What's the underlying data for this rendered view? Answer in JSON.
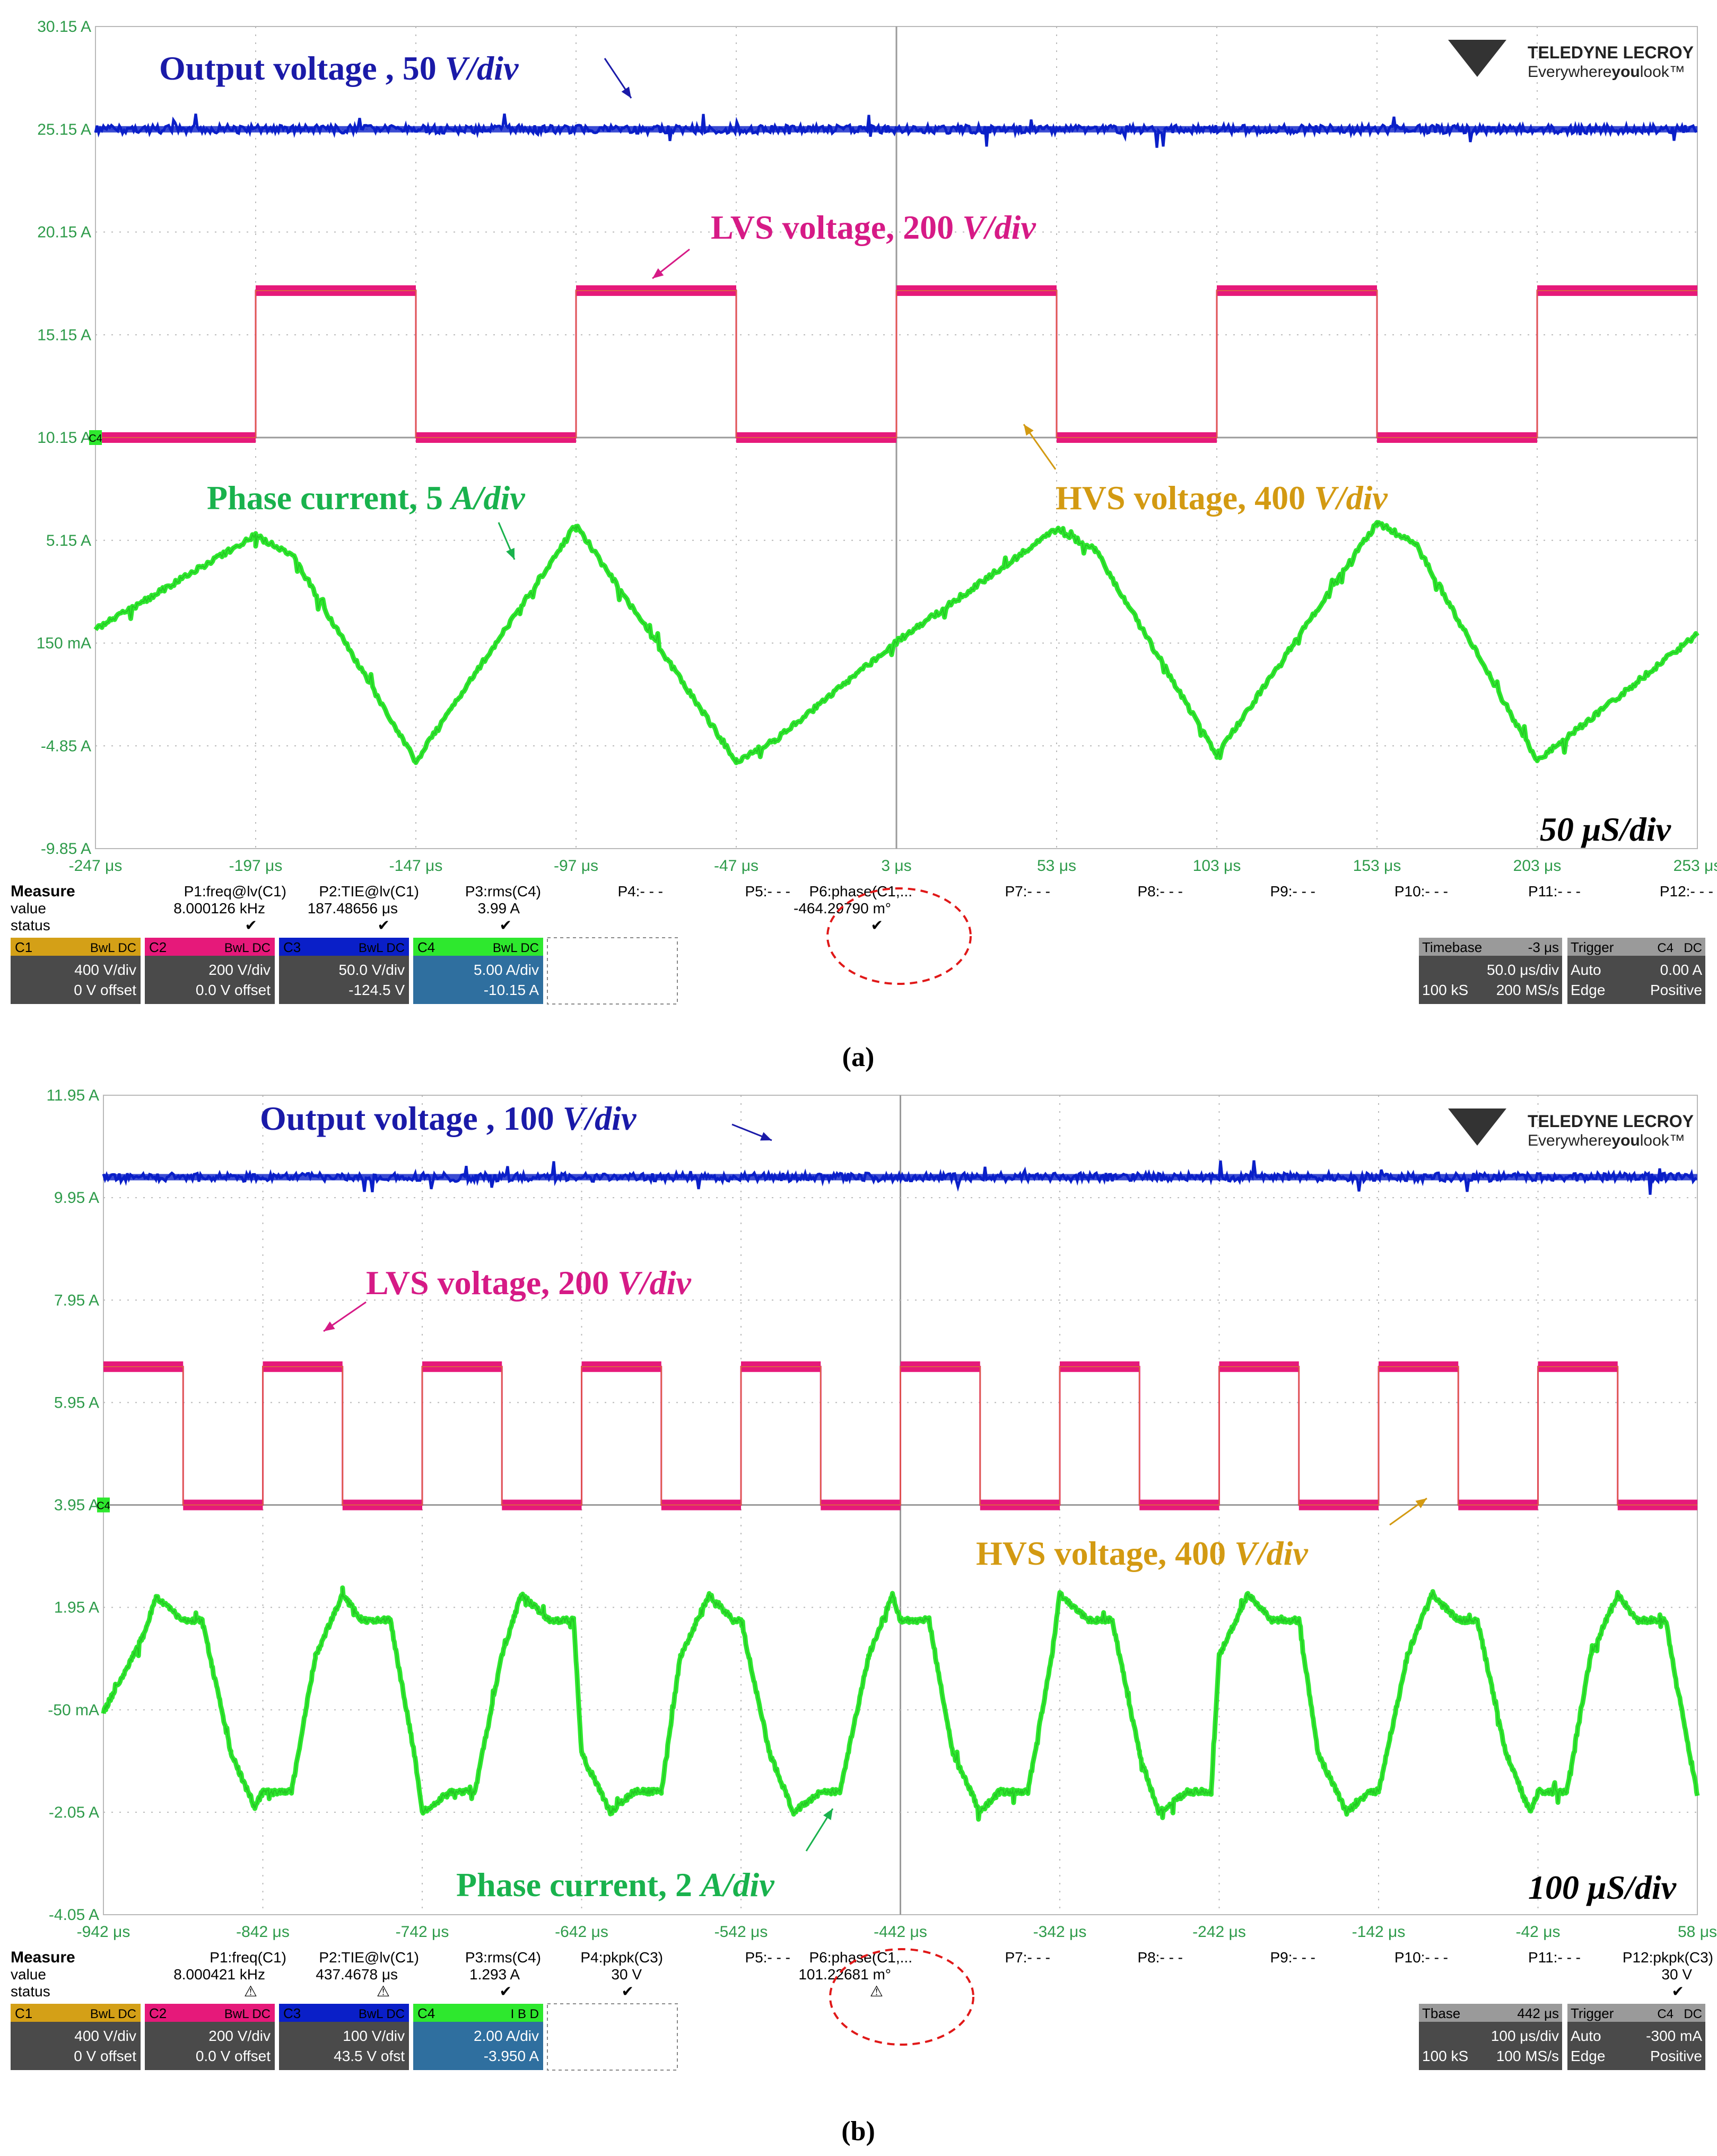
{
  "brand": {
    "name": "TELEDYNE LECROY",
    "tagline_pre": "Everywhere",
    "tagline_bold": "you",
    "tagline_post": "look™"
  },
  "colors": {
    "c1": "#d4a017",
    "c2": "#e6197a",
    "c3": "#0a1fc8",
    "c4": "#2ee82e",
    "grid": "#b9b9b9",
    "lbl_c1": "#d39a12",
    "lbl_c2": "#d61a86",
    "lbl_c3": "#1a1aa8",
    "lbl_c4": "#19b24d",
    "axis_txt": "#2e9b4a"
  },
  "chart_data": [
    {
      "type": "line",
      "caption": "(a)",
      "timebase_label": "50 μS/div",
      "y_ticks": [
        "30.15 A",
        "25.15 A",
        "20.15 A",
        "15.15 A",
        "10.15 A",
        "5.15 A",
        "150 mA",
        "-4.85 A",
        "-9.85 A"
      ],
      "x_ticks": [
        "-247 μs",
        "-197 μs",
        "-147 μs",
        "-97 μs",
        "-47 μs",
        "3 μs",
        "53 μs",
        "103 μs",
        "153 μs",
        "203 μs",
        "253 μs"
      ],
      "xlim_us": [
        -247,
        253
      ],
      "ylim": [
        -9.85,
        30.15
      ],
      "annotations": {
        "output": {
          "pre": "Output voltage , 50 ",
          "unit": "V/div"
        },
        "lvs": {
          "pre": "LVS voltage, 200 ",
          "unit": "V/div"
        },
        "hvs": {
          "pre": "HVS voltage, 400 ",
          "unit": "V/div"
        },
        "phase": {
          "pre": "Phase current, 5 ",
          "unit": "A/div"
        }
      },
      "series": [
        {
          "name": "Output voltage",
          "channel": "C3",
          "level": 25.15
        },
        {
          "name": "LVS voltage",
          "channel": "C2",
          "low": 10.15,
          "high": 17.3,
          "square_edges_us": [
            -197,
            -147,
            -97,
            -47,
            3,
            53,
            103,
            153,
            203,
            253
          ]
        },
        {
          "name": "HVS voltage",
          "channel": "C1"
        },
        {
          "name": "Phase current",
          "channel": "C4",
          "x_us": [
            -247,
            -197,
            -185,
            -147,
            -97,
            -47,
            -35,
            3,
            53,
            65,
            103,
            153,
            165,
            203,
            253
          ],
          "y": [
            0.8,
            5.4,
            4.3,
            -5.6,
            5.9,
            -5.6,
            -4.6,
            0.2,
            5.7,
            4.7,
            -5.3,
            6.0,
            5.0,
            -5.6,
            0.6
          ]
        }
      ],
      "measure": {
        "header": "Measure",
        "row_value": "value",
        "row_status": "status",
        "params": [
          "P1:freq@lv(C1)",
          "P2:TIE@lv(C1)",
          "P3:rms(C4)",
          "P4:- - -",
          "P5:- - -",
          "P6:phase(C1,...",
          "P7:- - -",
          "P8:- - -",
          "P9:- - -",
          "P10:- - -",
          "P11:- - -",
          "P12:- - -"
        ],
        "values": [
          "8.000126 kHz",
          "187.48656 μs",
          "3.99 A",
          "",
          "",
          "-464.29790 m°",
          "",
          "",
          "",
          "",
          "",
          ""
        ],
        "status": [
          "✔",
          "✔",
          "✔",
          "",
          "",
          "✔",
          "",
          "",
          "",
          "",
          "",
          ""
        ]
      },
      "channels": [
        {
          "id": "C1",
          "flags": "BwL DC",
          "scale": "400 V/div",
          "offset": "0 V offset"
        },
        {
          "id": "C2",
          "flags": "BwL DC",
          "scale": "200 V/div",
          "offset": "0.0 V offset"
        },
        {
          "id": "C3",
          "flags": "BwL DC",
          "scale": "50.0 V/div",
          "offset": "-124.5 V"
        },
        {
          "id": "C4",
          "flags": "BwL DC",
          "scale": "5.00 A/div",
          "offset": "-10.15 A"
        }
      ],
      "timebase": {
        "label": "Timebase",
        "delay": "-3 μs",
        "per_div": "50.0 μs/div",
        "samples": "100 kS",
        "rate": "200 MS/s"
      },
      "trigger": {
        "label": "Trigger",
        "ch": "C4",
        "coupling": "DC",
        "mode": "Auto",
        "level": "0.00 A",
        "type": "Edge",
        "slope": "Positive"
      }
    },
    {
      "type": "line",
      "caption": "(b)",
      "timebase_label": "100 μS/div",
      "y_ticks": [
        "11.95 A",
        "9.95 A",
        "7.95 A",
        "5.95 A",
        "3.95 A",
        "1.95 A",
        "-50 mA",
        "-2.05 A",
        "-4.05 A"
      ],
      "x_ticks": [
        "-942 μs",
        "-842 μs",
        "-742 μs",
        "-642 μs",
        "-542 μs",
        "-442 μs",
        "-342 μs",
        "-242 μs",
        "-142 μs",
        "-42 μs",
        "58 μs"
      ],
      "xlim_us": [
        -942,
        58
      ],
      "ylim": [
        -4.05,
        11.95
      ],
      "annotations": {
        "output": {
          "pre": "Output voltage , 100 ",
          "unit": "V/div"
        },
        "lvs": {
          "pre": "LVS voltage, 200 ",
          "unit": "V/div"
        },
        "hvs": {
          "pre": "HVS voltage, 400 ",
          "unit": "V/div"
        },
        "phase": {
          "pre": "Phase current, 2 ",
          "unit": "A/div"
        }
      },
      "series": [
        {
          "name": "Output voltage",
          "channel": "C3",
          "level": 10.35
        },
        {
          "name": "LVS voltage",
          "channel": "C2",
          "low": 3.95,
          "high": 6.65,
          "square_edges_us": [
            -892,
            -842,
            -792,
            -742,
            -692,
            -642,
            -592,
            -542,
            -492,
            -442,
            -392,
            -342,
            -292,
            -242,
            -192,
            -142,
            -92,
            -42,
            8,
            58
          ]
        },
        {
          "name": "HVS voltage",
          "channel": "C1"
        },
        {
          "name": "Phase current",
          "channel": "C4",
          "x_us": [
            -942,
            -917,
            -909,
            -892,
            -880,
            -862,
            -847,
            -842,
            -824,
            -809,
            -792,
            -780,
            -762,
            -747,
            -742,
            -724,
            -709,
            -692,
            -680,
            -662,
            -647,
            -642,
            -624,
            -609,
            -592,
            -580,
            -562,
            -547,
            -542,
            -524,
            -509,
            -492,
            -480,
            -462,
            -447,
            -442,
            -424,
            -409,
            -392,
            -380,
            -362,
            -347,
            -342,
            -324,
            -309,
            -292,
            -280,
            -262,
            -247,
            -242,
            -224,
            -209,
            -192,
            -180,
            -162,
            -147,
            -142,
            -124,
            -109,
            -92,
            -80,
            -62,
            -47,
            -42,
            -24,
            -9,
            8,
            20,
            38,
            53,
            58
          ],
          "y": [
            -0.1,
            1.4,
            2.15,
            1.7,
            1.7,
            -0.9,
            -1.95,
            -1.65,
            -1.65,
            1.0,
            2.2,
            1.7,
            1.7,
            -0.9,
            -2.05,
            -1.65,
            -1.65,
            1.0,
            2.2,
            1.7,
            1.7,
            -0.9,
            -2.05,
            -1.65,
            -1.65,
            1.0,
            2.2,
            1.7,
            1.7,
            -0.9,
            -2.05,
            -1.65,
            -1.65,
            1.0,
            2.2,
            1.7,
            1.7,
            -0.9,
            -2.05,
            -1.65,
            -1.65,
            1.0,
            2.2,
            1.7,
            1.7,
            -0.9,
            -2.05,
            -1.65,
            -1.65,
            1.0,
            2.2,
            1.7,
            1.7,
            -0.9,
            -2.05,
            -1.65,
            -1.65,
            1.0,
            2.2,
            1.7,
            1.7,
            -0.9,
            -2.05,
            -1.65,
            -1.65,
            1.0,
            2.2,
            1.7,
            1.7,
            -0.9,
            -1.7
          ]
        }
      ],
      "measure": {
        "header": "Measure",
        "row_value": "value",
        "row_status": "status",
        "params": [
          "P1:freq(C1)",
          "P2:TIE@lv(C1)",
          "P3:rms(C4)",
          "P4:pkpk(C3)",
          "P5:- - -",
          "P6:phase(C1,...",
          "P7:- - -",
          "P8:- - -",
          "P9:- - -",
          "P10:- - -",
          "P11:- - -",
          "P12:pkpk(C3)"
        ],
        "values": [
          "8.000421 kHz",
          "437.4678 μs",
          "1.293 A",
          "30 V",
          "",
          "101.22681 m°",
          "",
          "",
          "",
          "",
          "",
          "30 V"
        ],
        "status": [
          "⚠",
          "⚠",
          "✔",
          "✔",
          "",
          "⚠",
          "",
          "",
          "",
          "",
          "",
          "✔"
        ]
      },
      "channels": [
        {
          "id": "C1",
          "flags": "BwL DC",
          "scale": "400 V/div",
          "offset": "0 V offset"
        },
        {
          "id": "C2",
          "flags": "BwL DC",
          "scale": "200 V/div",
          "offset": "0.0 V offset"
        },
        {
          "id": "C3",
          "flags": "BwL DC",
          "scale": "100 V/div",
          "offset": "43.5 V ofst"
        },
        {
          "id": "C4",
          "flags": "I B D",
          "scale": "2.00 A/div",
          "offset": "-3.950 A"
        }
      ],
      "timebase": {
        "label": "Tbase",
        "delay": "442 μs",
        "per_div": "100 μs/div",
        "samples": "100 kS",
        "rate": "100 MS/s"
      },
      "trigger": {
        "label": "Trigger",
        "ch": "C4",
        "coupling": "DC",
        "mode": "Auto",
        "level": "-300 mA",
        "type": "Edge",
        "slope": "Positive"
      }
    }
  ]
}
